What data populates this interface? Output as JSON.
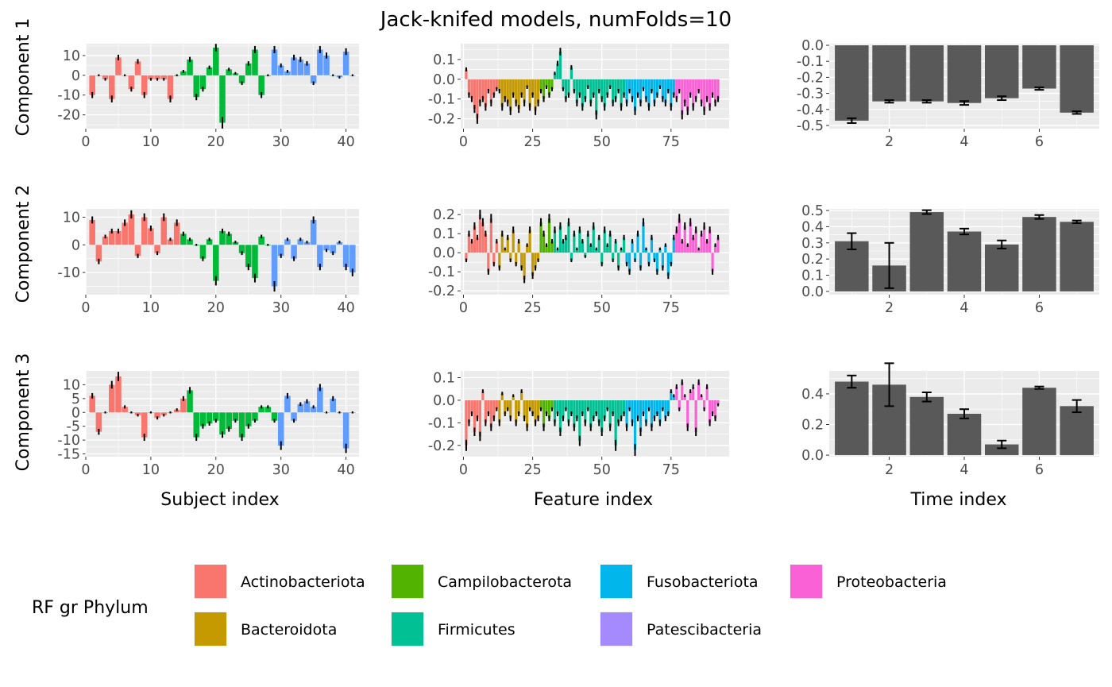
{
  "title": "Jack-knifed models, numFolds=10",
  "row_labels": [
    "Component 1",
    "Component 2",
    "Component 3"
  ],
  "column_labels": [
    "Subject index",
    "Feature index",
    "Time index"
  ],
  "legend": {
    "title": "RF gr Phylum",
    "items": [
      {
        "label": "Actinobacteriota",
        "color": "#F8766D"
      },
      {
        "label": "Bacteroidota",
        "color": "#C49A00"
      },
      {
        "label": "Campilobacterota",
        "color": "#53B400"
      },
      {
        "label": "Firmicutes",
        "color": "#00C094"
      },
      {
        "label": "Fusobacteriota",
        "color": "#00B6EB"
      },
      {
        "label": "Patescibacteria",
        "color": "#A58AFF"
      },
      {
        "label": "Proteobacteria",
        "color": "#FB61D7"
      }
    ]
  },
  "colors": {
    "panel_bg": "#EBEBEB",
    "grid": "#FFFFFF",
    "time_bar": "#595959",
    "subject_group_3": "#619CFF"
  },
  "chart_data": [
    {
      "type": "bar",
      "row": "Component 1",
      "xlabel": "Subject index",
      "xlim": [
        0,
        42
      ],
      "ylim": [
        -27,
        16
      ],
      "yticks": [
        10,
        0,
        -10,
        -20
      ],
      "xticks": [
        0,
        10,
        20,
        30,
        40
      ],
      "groups": [
        {
          "from": 1,
          "to": 13,
          "color": "#F8766D"
        },
        {
          "from": 14,
          "to": 28,
          "color": "#00BA38"
        },
        {
          "from": 29,
          "to": 41,
          "color": "#619CFF"
        }
      ],
      "values": [
        -10,
        0,
        -2,
        -12,
        9,
        0,
        -7,
        7,
        -10,
        -2,
        -2,
        -2,
        -12,
        0,
        2,
        8,
        -11,
        -7,
        4,
        14,
        -24,
        3,
        1,
        -4,
        6,
        13,
        -10,
        0,
        13,
        5,
        2,
        9,
        8,
        6,
        -4,
        13,
        10,
        0,
        -1,
        12,
        0
      ]
    },
    {
      "type": "bar",
      "row": "Component 1",
      "xlabel": "Feature index",
      "xlim": [
        -1,
        96
      ],
      "ylim": [
        -0.25,
        0.18
      ],
      "yticks": [
        0.1,
        0.0,
        -0.1,
        -0.2
      ],
      "yticklabels": [
        "0.1",
        "0.0",
        "-0.1",
        "-0.2"
      ],
      "xticks": [
        0,
        25,
        50,
        75
      ],
      "groups": [
        {
          "from": 1,
          "to": 12,
          "color": "#F8766D"
        },
        {
          "from": 13,
          "to": 27,
          "color": "#C49A00"
        },
        {
          "from": 28,
          "to": 32,
          "color": "#53B400"
        },
        {
          "from": 33,
          "to": 58,
          "color": "#00C094"
        },
        {
          "from": 59,
          "to": 76,
          "color": "#00B6EB"
        },
        {
          "from": 77,
          "to": 92,
          "color": "#FB61D7"
        }
      ],
      "values": [
        0.05,
        -0.08,
        -0.1,
        -0.15,
        -0.2,
        -0.12,
        -0.1,
        -0.14,
        -0.06,
        -0.12,
        -0.08,
        -0.05,
        -0.06,
        -0.14,
        -0.1,
        -0.12,
        -0.16,
        -0.08,
        -0.12,
        -0.15,
        -0.08,
        -0.12,
        -0.04,
        -0.14,
        -0.08,
        -0.16,
        -0.12,
        -0.06,
        -0.1,
        -0.04,
        -0.08,
        -0.05,
        0.03,
        0.08,
        0.14,
        -0.05,
        -0.1,
        -0.08,
        0.06,
        -0.06,
        -0.12,
        -0.08,
        -0.14,
        -0.1,
        -0.04,
        -0.12,
        -0.08,
        -0.18,
        -0.06,
        -0.1,
        -0.14,
        -0.08,
        -0.04,
        -0.12,
        -0.1,
        -0.06,
        -0.14,
        -0.08,
        -0.12,
        -0.06,
        -0.1,
        -0.16,
        -0.08,
        -0.12,
        -0.05,
        -0.1,
        -0.14,
        -0.06,
        -0.12,
        -0.08,
        -0.04,
        -0.1,
        -0.12,
        -0.06,
        -0.14,
        -0.08,
        -0.1,
        -0.06,
        -0.18,
        -0.12,
        -0.16,
        -0.08,
        -0.14,
        -0.1,
        -0.06,
        -0.12,
        -0.16,
        -0.1,
        -0.14,
        -0.08,
        -0.12,
        -0.1
      ]
    },
    {
      "type": "bar",
      "row": "Component 1",
      "xlabel": "Time index",
      "xlim": [
        0.4,
        7.6
      ],
      "ylim": [
        -0.52,
        0.01
      ],
      "yticks": [
        0.0,
        -0.1,
        -0.2,
        -0.3,
        -0.4,
        -0.5
      ],
      "yticklabels": [
        "0.0",
        "-0.1",
        "-0.2",
        "-0.3",
        "-0.4",
        "-0.5"
      ],
      "xticks": [
        2,
        4,
        6
      ],
      "values": [
        -0.47,
        -0.35,
        -0.35,
        -0.36,
        -0.33,
        -0.27,
        -0.42
      ],
      "errors": [
        0.015,
        0.008,
        0.008,
        0.012,
        0.012,
        0.008,
        0.008
      ]
    },
    {
      "type": "bar",
      "row": "Component 2",
      "xlabel": "Subject index",
      "xlim": [
        0,
        42
      ],
      "ylim": [
        -18,
        13
      ],
      "yticks": [
        10,
        0,
        -10
      ],
      "xticks": [
        0,
        10,
        20,
        30,
        40
      ],
      "groups": [
        {
          "from": 1,
          "to": 14,
          "color": "#F8766D"
        },
        {
          "from": 15,
          "to": 28,
          "color": "#00BA38"
        },
        {
          "from": 29,
          "to": 41,
          "color": "#619CFF"
        }
      ],
      "values": [
        9,
        -6,
        3,
        5,
        5,
        8,
        11,
        -4,
        10,
        6,
        -3,
        10,
        2,
        8,
        4,
        2,
        0,
        -5,
        2,
        -13,
        5,
        4,
        1,
        -3,
        -8,
        -12,
        3,
        0,
        -15,
        -4,
        2,
        -5,
        2,
        1,
        9,
        -8,
        -2,
        -3,
        1,
        -8,
        -10
      ]
    },
    {
      "type": "bar",
      "row": "Component 2",
      "xlabel": "Feature index",
      "xlim": [
        -1,
        96
      ],
      "ylim": [
        -0.22,
        0.23
      ],
      "yticks": [
        0.2,
        0.1,
        0.0,
        -0.1,
        -0.2
      ],
      "yticklabels": [
        "0.2",
        "0.1",
        "0.0",
        "-0.1",
        "-0.2"
      ],
      "xticks": [
        0,
        25,
        50,
        75
      ],
      "groups": [
        {
          "from": 1,
          "to": 12,
          "color": "#F8766D"
        },
        {
          "from": 13,
          "to": 27,
          "color": "#C49A00"
        },
        {
          "from": 28,
          "to": 32,
          "color": "#53B400"
        },
        {
          "from": 33,
          "to": 58,
          "color": "#00C094"
        },
        {
          "from": 59,
          "to": 76,
          "color": "#00B6EB"
        },
        {
          "from": 77,
          "to": 92,
          "color": "#FB61D7"
        }
      ],
      "values": [
        -0.04,
        0.1,
        0.06,
        0.14,
        0.08,
        0.2,
        0.16,
        0.1,
        -0.1,
        0.18,
        -0.06,
        0.06,
        -0.08,
        0.1,
        0.02,
        0.08,
        -0.04,
        0.12,
        -0.06,
        0.06,
        -0.08,
        -0.14,
        0.04,
        0.12,
        -0.12,
        -0.08,
        -0.04,
        0.16,
        0.1,
        0.04,
        0.18,
        0.06,
        0.12,
        0.02,
        0.14,
        0.06,
        0.08,
        0.16,
        -0.04,
        0.1,
        0.02,
        0.12,
        0.06,
        -0.02,
        0.1,
        0.04,
        0.14,
        0.02,
        0.08,
        -0.06,
        0.12,
        0.04,
        0.1,
        -0.04,
        0.06,
        -0.08,
        0.02,
        0.08,
        -0.06,
        -0.1,
        0.06,
        -0.04,
        0.1,
        -0.08,
        0.16,
        0.02,
        -0.06,
        0.08,
        -0.04,
        -0.1,
        0.02,
        -0.08,
        0.04,
        -0.12,
        -0.06,
        0.08,
        0.12,
        0.18,
        0.06,
        0.14,
        0.04,
        0.16,
        0.08,
        0.12,
        0.02,
        0.1,
        0.14,
        0.06,
        0.12,
        -0.1,
        0.04,
        0.08
      ]
    },
    {
      "type": "bar",
      "row": "Component 2",
      "xlabel": "Time index",
      "xlim": [
        0.4,
        7.6
      ],
      "ylim": [
        -0.02,
        0.51
      ],
      "yticks": [
        0.0,
        0.1,
        0.2,
        0.3,
        0.4,
        0.5
      ],
      "yticklabels": [
        "0.0",
        "0.1",
        "0.2",
        "0.3",
        "0.4",
        "0.5"
      ],
      "xticks": [
        2,
        4,
        6
      ],
      "values": [
        0.31,
        0.16,
        0.49,
        0.37,
        0.29,
        0.46,
        0.43
      ],
      "errors": [
        0.05,
        0.14,
        0.012,
        0.018,
        0.025,
        0.012,
        0.008
      ]
    },
    {
      "type": "bar",
      "row": "Component 3",
      "xlabel": "Subject index",
      "xlim": [
        0,
        42
      ],
      "ylim": [
        -16,
        15
      ],
      "yticks": [
        10,
        5,
        0,
        -5,
        -10,
        -15
      ],
      "xticks": [
        0,
        10,
        20,
        30,
        40
      ],
      "groups": [
        {
          "from": 1,
          "to": 15,
          "color": "#F8766D"
        },
        {
          "from": 16,
          "to": 29,
          "color": "#00BA38"
        },
        {
          "from": 30,
          "to": 41,
          "color": "#619CFF"
        }
      ],
      "values": [
        6,
        -7,
        0,
        10,
        13,
        2,
        0,
        -1,
        -9,
        0,
        -2,
        -1,
        0,
        1,
        5,
        8,
        -9,
        -5,
        -4,
        -3,
        -8,
        -6,
        -3,
        -9,
        -5,
        -3,
        2,
        2,
        -3,
        -12,
        6,
        -3,
        3,
        4,
        2,
        9,
        0,
        5,
        0,
        -13,
        0
      ]
    },
    {
      "type": "bar",
      "row": "Component 3",
      "xlabel": "Feature index",
      "xlim": [
        -1,
        96
      ],
      "ylim": [
        -0.25,
        0.13
      ],
      "yticks": [
        0.1,
        0.0,
        -0.1,
        -0.2
      ],
      "yticklabels": [
        "0.1",
        "0.0",
        "-0.1",
        "-0.2"
      ],
      "xticks": [
        0,
        25,
        50,
        75
      ],
      "groups": [
        {
          "from": 1,
          "to": 12,
          "color": "#F8766D"
        },
        {
          "from": 13,
          "to": 27,
          "color": "#C49A00"
        },
        {
          "from": 28,
          "to": 32,
          "color": "#53B400"
        },
        {
          "from": 33,
          "to": 58,
          "color": "#00C094"
        },
        {
          "from": 59,
          "to": 76,
          "color": "#00B6EB"
        },
        {
          "from": 77,
          "to": 92,
          "color": "#FB61D7"
        }
      ],
      "values": [
        -0.2,
        -0.1,
        -0.06,
        -0.14,
        -0.08,
        -0.16,
        0.04,
        -0.1,
        -0.06,
        -0.12,
        -0.08,
        -0.04,
        -0.1,
        0.03,
        -0.06,
        -0.04,
        -0.08,
        0.02,
        -0.1,
        -0.06,
        0.04,
        -0.08,
        -0.12,
        -0.04,
        -0.06,
        -0.1,
        -0.08,
        -0.04,
        -0.12,
        -0.06,
        -0.08,
        -0.04,
        -0.1,
        -0.06,
        -0.14,
        -0.08,
        -0.04,
        -0.1,
        -0.06,
        -0.12,
        -0.08,
        -0.18,
        -0.06,
        -0.1,
        -0.04,
        -0.12,
        -0.08,
        -0.06,
        -0.1,
        -0.14,
        -0.08,
        -0.04,
        -0.12,
        -0.06,
        -0.2,
        -0.1,
        -0.08,
        -0.06,
        -0.12,
        -0.04,
        -0.1,
        -0.22,
        -0.08,
        -0.14,
        -0.06,
        -0.1,
        -0.04,
        -0.12,
        -0.08,
        -0.06,
        -0.1,
        -0.04,
        -0.08,
        -0.06,
        0.04,
        0.02,
        0.06,
        -0.04,
        0.08,
        0.02,
        -0.12,
        0.04,
        0.06,
        -0.14,
        0.08,
        0.02,
        -0.04,
        0.06,
        -0.1,
        -0.06,
        -0.08,
        -0.02
      ]
    },
    {
      "type": "bar",
      "row": "Component 3",
      "xlabel": "Time index",
      "xlim": [
        0.4,
        7.6
      ],
      "ylim": [
        -0.01,
        0.55
      ],
      "yticks": [
        0.0,
        0.2,
        0.4
      ],
      "yticklabels": [
        "0.0",
        "0.2",
        "0.4"
      ],
      "xticks": [
        2,
        4,
        6
      ],
      "values": [
        0.48,
        0.46,
        0.38,
        0.27,
        0.07,
        0.44,
        0.32
      ],
      "errors": [
        0.04,
        0.14,
        0.03,
        0.03,
        0.025,
        0.008,
        0.04
      ]
    }
  ]
}
